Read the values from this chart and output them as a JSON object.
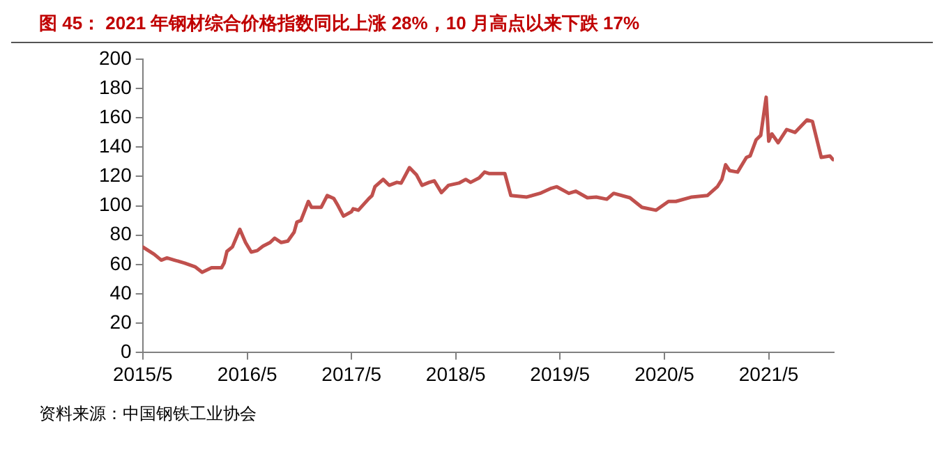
{
  "chart_data": {
    "type": "line",
    "title": "图 45： 2021 年钢材综合价格指数同比上涨 28%，10 月高点以来下跌 17%",
    "annotations": [
      "资料来源：中国钢铁工业协会"
    ],
    "x": [
      "2015-05-01",
      "2015-06-10",
      "2015-07-05",
      "2015-07-25",
      "2015-08-20",
      "2015-09-25",
      "2015-10-31",
      "2015-11-25",
      "2015-12-28",
      "2016-02-01",
      "2016-02-10",
      "2016-02-20",
      "2016-03-10",
      "2016-04-05",
      "2016-04-25",
      "2016-05-15",
      "2016-06-05",
      "2016-06-25",
      "2016-07-20",
      "2016-08-05",
      "2016-08-28",
      "2016-09-20",
      "2016-10-12",
      "2016-10-22",
      "2016-11-05",
      "2016-12-01",
      "2016-12-12",
      "2017-01-15",
      "2017-02-05",
      "2017-02-28",
      "2017-03-15",
      "2017-04-03",
      "2017-05-01",
      "2017-05-07",
      "2017-05-25",
      "2017-07-01",
      "2017-07-12",
      "2017-07-22",
      "2017-08-20",
      "2017-09-10",
      "2017-10-07",
      "2017-10-22",
      "2017-11-20",
      "2017-12-15",
      "2018-01-03",
      "2018-01-28",
      "2018-02-15",
      "2018-03-12",
      "2018-04-06",
      "2018-05-12",
      "2018-06-05",
      "2018-06-22",
      "2018-07-22",
      "2018-08-10",
      "2018-08-25",
      "2018-10-20",
      "2018-11-10",
      "2019-01-05",
      "2019-02-20",
      "2019-04-01",
      "2019-04-20",
      "2019-06-01",
      "2019-06-25",
      "2019-08-05",
      "2019-09-05",
      "2019-10-12",
      "2019-11-05",
      "2020-01-01",
      "2020-02-12",
      "2020-04-01",
      "2020-05-15",
      "2020-06-10",
      "2020-08-05",
      "2020-09-28",
      "2020-11-02",
      "2020-11-18",
      "2020-12-01",
      "2020-12-15",
      "2021-01-12",
      "2021-02-12",
      "2021-02-25",
      "2021-03-18",
      "2021-04-03",
      "2021-04-22",
      "2021-05-01",
      "2021-05-12",
      "2021-06-03",
      "2021-07-03",
      "2021-08-01",
      "2021-09-12",
      "2021-10-01",
      "2021-11-01",
      "2021-12-01",
      "2021-12-12"
    ],
    "series": [
      {
        "color": "#c0504d",
        "values": [
          72,
          67,
          63,
          64.5,
          63,
          61,
          58.5,
          54.7,
          57.8,
          57.8,
          61,
          69,
          72,
          84,
          75,
          68.5,
          69.5,
          72.5,
          75,
          78,
          75,
          76,
          82,
          89,
          90,
          103,
          99,
          99,
          107,
          105,
          100,
          93,
          96,
          98,
          97,
          105,
          107,
          113,
          118,
          114,
          116,
          115.5,
          126,
          121,
          114,
          116,
          117,
          109,
          114,
          115.5,
          118,
          116,
          119,
          123,
          122,
          122,
          107,
          106,
          108.5,
          112,
          113,
          108.5,
          110,
          105.5,
          106,
          104.5,
          108.5,
          105.5,
          99,
          97,
          103,
          103,
          106,
          107,
          113,
          118,
          128,
          124,
          123,
          133,
          134,
          145,
          148,
          174,
          144,
          149,
          143,
          152,
          150,
          158.5,
          157.5,
          133,
          134,
          131.5
        ]
      }
    ],
    "xlim": [
      "2015-05-01",
      "2021-12-15"
    ],
    "xticks": [
      {
        "value": "2015-05-01",
        "label": "2015/5"
      },
      {
        "value": "2016-05-01",
        "label": "2016/5"
      },
      {
        "value": "2017-05-01",
        "label": "2017/5"
      },
      {
        "value": "2018-05-01",
        "label": "2018/5"
      },
      {
        "value": "2019-05-01",
        "label": "2019/5"
      },
      {
        "value": "2020-05-01",
        "label": "2020/5"
      },
      {
        "value": "2021-05-01",
        "label": "2021/5"
      }
    ],
    "ylim": [
      0,
      200
    ],
    "yticks": [
      0,
      20,
      40,
      60,
      80,
      100,
      120,
      140,
      160,
      180,
      200
    ],
    "grid": false,
    "legend": false,
    "marker": "none",
    "line_style": "solid"
  }
}
